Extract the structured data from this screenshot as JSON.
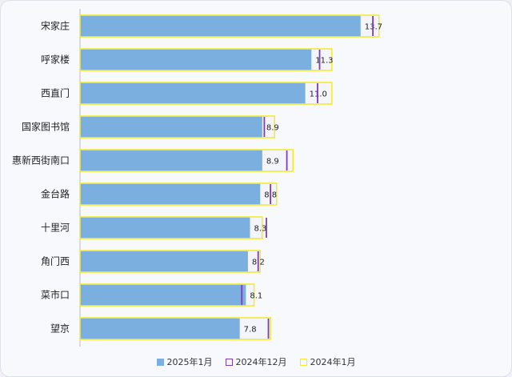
{
  "chart_data": {
    "type": "bar",
    "orientation": "horizontal",
    "categories": [
      "宋家庄",
      "呼家楼",
      "西直门",
      "国家图书馆",
      "惠新西街南口",
      "金台路",
      "十里河",
      "角门西",
      "菜市口",
      "望京"
    ],
    "series": [
      {
        "name": "2025年1月",
        "style": "bar",
        "color": "#7bafe0",
        "values": [
          13.7,
          11.3,
          11.0,
          8.9,
          8.9,
          8.8,
          8.3,
          8.2,
          8.1,
          7.8
        ]
      },
      {
        "name": "2024年12月",
        "style": "marker",
        "color": "#7a3fb0",
        "values": [
          14.3,
          11.7,
          11.6,
          9.0,
          10.1,
          9.3,
          9.1,
          8.7,
          7.9,
          9.2
        ]
      },
      {
        "name": "2024年1月",
        "style": "outline-bar",
        "color": "#f2ea2a",
        "values": [
          14.6,
          12.3,
          12.3,
          9.5,
          10.4,
          9.6,
          8.9,
          8.8,
          8.5,
          9.3
        ]
      }
    ],
    "value_labels": [
      "13.7",
      "11.3",
      "11.0",
      "8.9",
      "8.9",
      "8.8",
      "8.3",
      "8.2",
      "8.1",
      "7.8"
    ],
    "xlim": [
      0,
      16
    ],
    "legend_position": "bottom",
    "grid": false
  }
}
